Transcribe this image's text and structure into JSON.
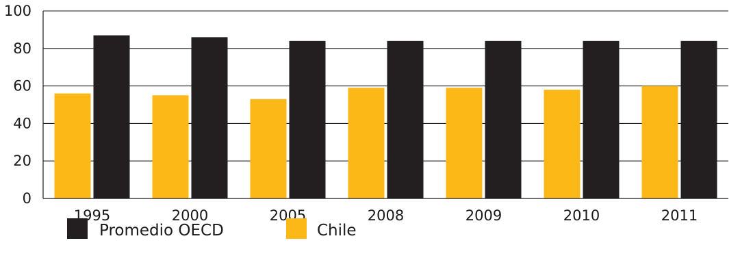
{
  "chart_data": {
    "type": "bar",
    "title": "",
    "xlabel": "",
    "ylabel": "",
    "categories": [
      "1995",
      "2000",
      "2005",
      "2008",
      "2009",
      "2010",
      "2011"
    ],
    "series": [
      {
        "name": "Chile",
        "color": "#FBB817",
        "values": [
          56,
          55,
          53,
          59,
          59,
          58,
          60
        ]
      },
      {
        "name": "Promedio OECD",
        "color": "#231F20",
        "values": [
          87,
          86,
          84,
          84,
          84,
          84,
          84
        ]
      }
    ],
    "ylim": [
      0,
      100
    ],
    "yticks": [
      "0",
      "20",
      "40",
      "60",
      "80",
      "100"
    ],
    "grid": true,
    "legend": {
      "position": "bottom-left",
      "items": [
        {
          "label": "Promedio OECD",
          "color": "#231F20"
        },
        {
          "label": "Chile",
          "color": "#FBB817"
        }
      ]
    }
  }
}
